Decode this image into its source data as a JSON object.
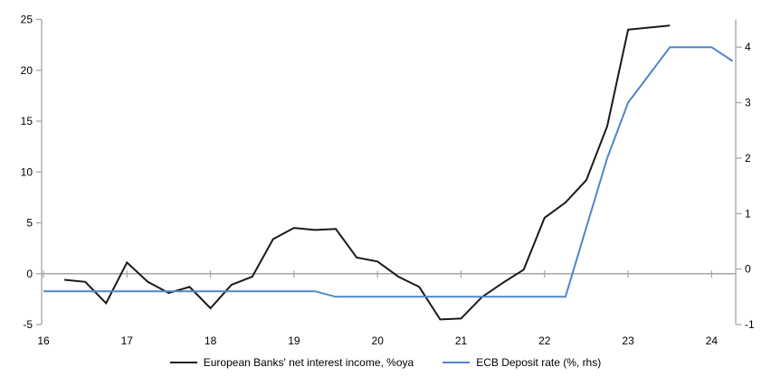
{
  "chart_data": {
    "type": "line",
    "title": "",
    "x_axis": {
      "tick_values": [
        16,
        17,
        18,
        19,
        20,
        21,
        22,
        23,
        24
      ],
      "tick_labels": [
        "16",
        "17",
        "18",
        "19",
        "20",
        "21",
        "22",
        "23",
        "24"
      ],
      "min": 16,
      "max": 24.3
    },
    "y_left": {
      "min": -5,
      "max": 25,
      "ticks": [
        25,
        20,
        15,
        10,
        5,
        0,
        -5
      ],
      "zero_line": true
    },
    "y_right": {
      "min": -1,
      "max": 4.5,
      "ticks": [
        4,
        3,
        2,
        1,
        0,
        -1
      ]
    },
    "grid": "none",
    "legend_position": "bottom",
    "axis_color": "#a6a6a6",
    "text_color": "#000000",
    "series": [
      {
        "name": "European Banks' net interest income, %oya",
        "axis": "left",
        "color": "#1a1a1a",
        "x": [
          16.25,
          16.5,
          16.75,
          17.0,
          17.25,
          17.5,
          17.75,
          18.0,
          18.25,
          18.5,
          18.75,
          19.0,
          19.25,
          19.5,
          19.75,
          20.0,
          20.25,
          20.5,
          20.75,
          21.0,
          21.25,
          21.5,
          21.75,
          22.0,
          22.25,
          22.5,
          22.75,
          23.0,
          23.25,
          23.5
        ],
        "values": [
          -0.6,
          -0.8,
          -2.9,
          1.1,
          -0.8,
          -1.9,
          -1.3,
          -3.4,
          -1.1,
          -0.3,
          3.4,
          4.5,
          4.3,
          4.4,
          1.6,
          1.2,
          -0.3,
          -1.3,
          -4.5,
          -4.4,
          -2.3,
          -0.9,
          0.4,
          5.5,
          7.0,
          9.2,
          14.5,
          24.0,
          24.2,
          24.4
        ]
      },
      {
        "name": "ECB Deposit rate (%, rhs)",
        "axis": "right",
        "color": "#4f86c6",
        "x": [
          16.0,
          16.25,
          16.5,
          16.75,
          17.0,
          17.25,
          17.5,
          17.75,
          18.0,
          18.25,
          18.5,
          18.75,
          19.0,
          19.25,
          19.5,
          19.75,
          20.0,
          20.25,
          20.5,
          20.75,
          21.0,
          21.25,
          21.5,
          21.75,
          22.0,
          22.25,
          22.5,
          22.75,
          23.0,
          23.25,
          23.5,
          23.75,
          24.0,
          24.25
        ],
        "values": [
          -0.4,
          -0.4,
          -0.4,
          -0.4,
          -0.4,
          -0.4,
          -0.4,
          -0.4,
          -0.4,
          -0.4,
          -0.4,
          -0.4,
          -0.4,
          -0.4,
          -0.5,
          -0.5,
          -0.5,
          -0.5,
          -0.5,
          -0.5,
          -0.5,
          -0.5,
          -0.5,
          -0.5,
          -0.5,
          -0.5,
          0.75,
          2.0,
          3.0,
          3.5,
          4.0,
          4.0,
          4.0,
          3.75
        ]
      }
    ]
  },
  "legend": {
    "item1": "European Banks' net interest income, %oya",
    "item2": "ECB Deposit rate (%, rhs)"
  }
}
